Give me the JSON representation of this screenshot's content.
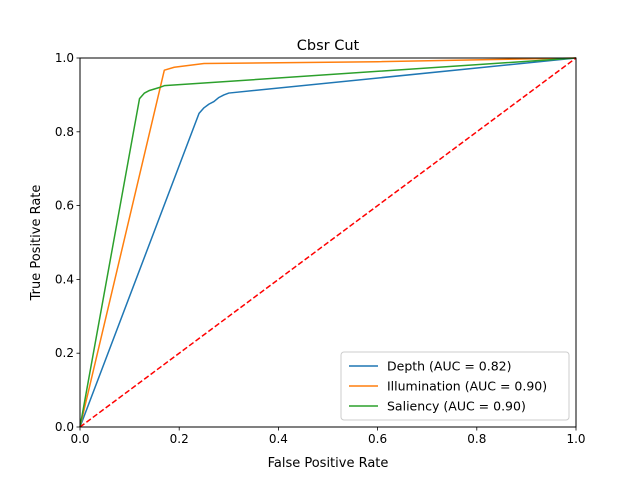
{
  "chart_data": {
    "type": "line",
    "title": "Cbsr Cut",
    "xlabel": "False Positive Rate",
    "ylabel": "True Positive Rate",
    "xlim": [
      0.0,
      1.0
    ],
    "ylim": [
      0.0,
      1.0
    ],
    "xticks": [
      "0.0",
      "0.2",
      "0.4",
      "0.6",
      "0.8",
      "1.0"
    ],
    "yticks": [
      "0.0",
      "0.2",
      "0.4",
      "0.6",
      "0.8",
      "1.0"
    ],
    "grid": false,
    "legend_position": "lower-right",
    "series": [
      {
        "name": "Depth (AUC = 0.82)",
        "color": "#1f77b4",
        "x": [
          0.0,
          0.24,
          0.25,
          0.26,
          0.27,
          0.28,
          0.29,
          0.3,
          1.0
        ],
        "y": [
          0.0,
          0.85,
          0.865,
          0.875,
          0.882,
          0.893,
          0.9,
          0.905,
          1.0
        ]
      },
      {
        "name": "Illumination (AUC = 0.90)",
        "color": "#ff7f0e",
        "x": [
          0.0,
          0.17,
          0.19,
          0.22,
          0.25,
          0.6,
          1.0
        ],
        "y": [
          0.0,
          0.967,
          0.975,
          0.98,
          0.985,
          0.99,
          1.0
        ]
      },
      {
        "name": "Saliency (AUC = 0.90)",
        "color": "#2ca02c",
        "x": [
          0.0,
          0.12,
          0.13,
          0.14,
          0.16,
          0.17,
          1.0
        ],
        "y": [
          0.0,
          0.89,
          0.905,
          0.912,
          0.92,
          0.925,
          1.0
        ]
      }
    ],
    "reference_line": {
      "x": [
        0.0,
        1.0
      ],
      "y": [
        0.0,
        1.0
      ],
      "color": "#ff0000",
      "style": "dashed"
    }
  }
}
